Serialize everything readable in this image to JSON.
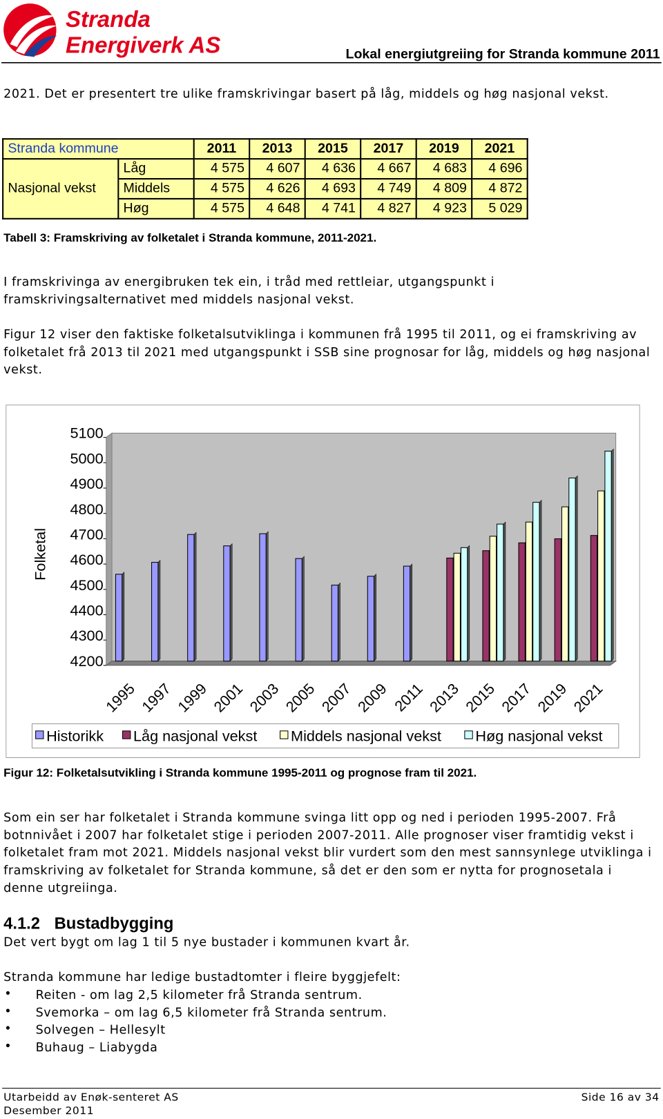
{
  "header": {
    "logo": [
      "Stranda",
      "Energiverk AS"
    ],
    "title": "Lokal energiutgreiing for Stranda kommune 2011"
  },
  "paragraphs": [
    "2021. Det er presentert tre ulike framskrivingar basert på låg, middels og høg nasjonal vekst.",
    "I framskrivinga av energibruken tek ein, i tråd med rettleiar, utgangspunkt i framskrivingsalternativet med middels nasjonal vekst.",
    "Figur 12 viser den faktiske folketalsutviklinga i kommunen frå 1995 til 2011, og ei framskriving av folketalet frå 2013 til 2021 med utgangspunkt i SSB sine prognosar for låg, middels og høg nasjonal vekst.",
    "Som ein ser har folketalet i Stranda kommune svinga litt opp og ned i perioden 1995-2007. Frå botnnivået i 2007 har folketalet stige i perioden 2007-2011. Alle prognoser viser framtidig vekst i folketalet fram mot 2021. Middels nasjonal vekst blir vurdert som den mest sannsynlege utviklinga i framskriving av folketalet for Stranda kommune, så det er den som er nytta for prognosetala i denne utgreiinga.",
    "Det vert bygt om lag 1 til 5 nye bustader i kommunen kvart år.",
    "Stranda kommune har ledige bustadtomter i fleire byggjefelt:"
  ],
  "table": {
    "corner": "Stranda kommune",
    "columns": [
      "2011",
      "2013",
      "2015",
      "2017",
      "2019",
      "2021"
    ],
    "group": "Nasjonal vekst",
    "rows": [
      {
        "label": "Låg",
        "cells": [
          "4 575",
          "4 607",
          "4 636",
          "4 667",
          "4 683",
          "4 696"
        ]
      },
      {
        "label": "Middels",
        "cells": [
          "4 575",
          "4 626",
          "4 693",
          "4 749",
          "4 809",
          "4 872"
        ]
      },
      {
        "label": "Høg",
        "cells": [
          "4 575",
          "4 648",
          "4 741",
          "4 827",
          "4 923",
          "5 029"
        ]
      }
    ],
    "caption": "Tabell 3: Framskriving av folketalet i Stranda kommune, 2011-2021."
  },
  "chart_data": {
    "type": "bar",
    "y_label": "Folketal",
    "categories": [
      "1995",
      "1997",
      "1999",
      "2001",
      "2003",
      "2005",
      "2007",
      "2009",
      "2011",
      "2013",
      "2015",
      "2017",
      "2019",
      "2021"
    ],
    "series": [
      {
        "name": "Historikk",
        "color": "#9999ff",
        "values": [
          4543,
          4590,
          4700,
          4655,
          4703,
          4605,
          4500,
          4535,
          4575,
          null,
          null,
          null,
          null,
          null
        ]
      },
      {
        "name": "Låg nasjonal vekst",
        "color": "#993366",
        "values": [
          null,
          null,
          null,
          null,
          null,
          null,
          null,
          null,
          null,
          4607,
          4636,
          4667,
          4683,
          4696
        ]
      },
      {
        "name": "Middels nasjonal vekst",
        "color": "#ffffcc",
        "values": [
          null,
          null,
          null,
          null,
          null,
          null,
          null,
          null,
          null,
          4626,
          4693,
          4749,
          4809,
          4872
        ]
      },
      {
        "name": "Høg nasjonal vekst",
        "color": "#ccffff",
        "values": [
          null,
          null,
          null,
          null,
          null,
          null,
          null,
          null,
          null,
          4648,
          4741,
          4827,
          4923,
          5029
        ]
      }
    ],
    "ylim": [
      4200,
      5100
    ],
    "yticks": [
      4200,
      4300,
      4400,
      4500,
      4600,
      4700,
      4800,
      4900,
      5000,
      5100
    ],
    "grid": false,
    "legend": "bottom"
  },
  "figure_caption": "Figur 12: Folketalsutvikling i Stranda kommune 1995-2011 og prognose fram til 2021.",
  "heading": {
    "number": "4.1.2",
    "text": "Bustadbygging"
  },
  "bullets": [
    "Reiten - om lag 2,5 kilometer frå Stranda sentrum.",
    "Svemorka – om lag 6,5 kilometer frå Stranda sentrum.",
    "Solvegen – Hellesylt",
    "Buhaug – Liabygda"
  ],
  "footer": {
    "left": [
      "Utarbeidd av Enøk-senteret AS",
      "Desember 2011"
    ],
    "right": "Side 16 av 34"
  }
}
